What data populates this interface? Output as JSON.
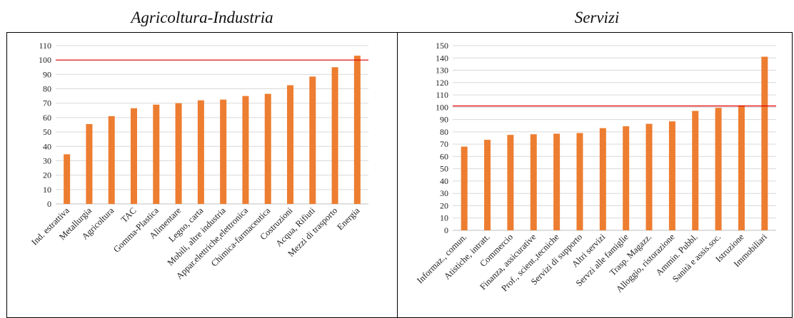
{
  "titles": {
    "left": "Agricoltura-Industria",
    "right": "Servizi"
  },
  "colors": {
    "bar": "#ED7D31",
    "reference_line": "#E00000",
    "grid": "#D9D9D9",
    "axis": "#BFBFBF"
  },
  "chart_data": [
    {
      "type": "bar",
      "title": "Agricoltura-Industria",
      "categories": [
        "Ind. estrattiva",
        "Metallurgia",
        "Agricoltura",
        "TAC",
        "Gomma-Plastica",
        "Alimentare",
        "Legno, carta",
        "Mobili, altre industria",
        "Appar.elettriche,elettronica",
        "Chimica-farmaceutica",
        "Costruzioni",
        "Acqua, Rifiuti",
        "Mezzi di trasporto",
        "Energia"
      ],
      "values": [
        34.5,
        55.5,
        61,
        66.5,
        69,
        70,
        72,
        72.5,
        75,
        76.5,
        82.5,
        88.5,
        95,
        103
      ],
      "ylim": [
        0,
        110
      ],
      "yticks": [
        0,
        10,
        20,
        30,
        40,
        50,
        60,
        70,
        80,
        90,
        100,
        110
      ],
      "reference_line": 100,
      "grid": true
    },
    {
      "type": "bar",
      "title": "Servizi",
      "categories": [
        "Informaz., comun.",
        "Atistiche, intratt.",
        "Commercio",
        "Finanza, assicurative",
        "Prof., scient.,tecniche",
        "Servizi di supporto",
        "Altri servizi",
        "Servzi alle famiglie",
        "Trasp. Magazz.",
        "Alloggio, ristorazione",
        "Ammin. Pubbl.",
        "Sanità e assis.soc.",
        "Istruzione",
        "Immobiliari"
      ],
      "values": [
        68,
        73.5,
        77.5,
        78,
        78.5,
        79,
        83,
        84.5,
        86.5,
        88.5,
        97,
        99.5,
        101.5,
        141
      ],
      "ylim": [
        0,
        150
      ],
      "yticks": [
        0,
        10,
        20,
        30,
        40,
        50,
        60,
        70,
        80,
        90,
        100,
        110,
        120,
        130,
        140,
        150
      ],
      "reference_line": 101,
      "grid": true
    }
  ]
}
